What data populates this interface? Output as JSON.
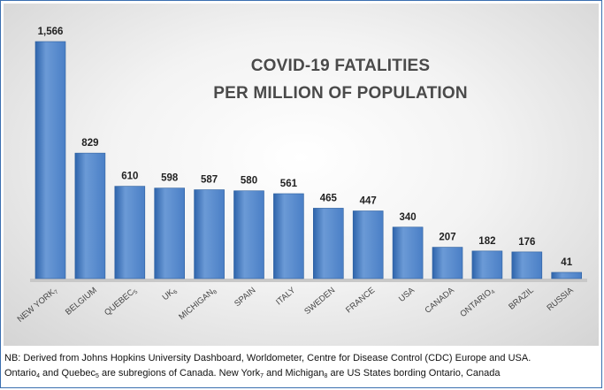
{
  "chart_data": {
    "type": "bar",
    "title": "COVID-19 FATALITIES PER MILLION OF POPULATION",
    "title_lines": [
      "COVID-19 FATALITIES",
      "PER MILLION OF POPULATION"
    ],
    "categories": [
      "NEW YORK7",
      "BELGIUM",
      "QUEBEC5",
      "UK6",
      "MICHIGAN8",
      "SPAIN",
      "ITALY",
      "SWEDEN",
      "FRANCE",
      "USA",
      "CANADA",
      "ONTARIO4",
      "BRAZIL",
      "RUSSIA"
    ],
    "category_labels": [
      {
        "base": "NEW YORK",
        "sub": "7"
      },
      {
        "base": "BELGIUM",
        "sub": ""
      },
      {
        "base": "QUEBEC",
        "sub": "5"
      },
      {
        "base": "UK",
        "sub": "6"
      },
      {
        "base": "MICHIGAN",
        "sub": "8"
      },
      {
        "base": "SPAIN",
        "sub": ""
      },
      {
        "base": "ITALY",
        "sub": ""
      },
      {
        "base": "SWEDEN",
        "sub": ""
      },
      {
        "base": "FRANCE",
        "sub": ""
      },
      {
        "base": "USA",
        "sub": ""
      },
      {
        "base": "CANADA",
        "sub": ""
      },
      {
        "base": "ONTARIO",
        "sub": "4"
      },
      {
        "base": "BRAZIL",
        "sub": ""
      },
      {
        "base": "RUSSIA",
        "sub": ""
      }
    ],
    "values": [
      1566,
      829,
      610,
      598,
      587,
      580,
      561,
      465,
      447,
      340,
      207,
      182,
      176,
      41
    ],
    "data_labels": [
      "1,566",
      "829",
      "610",
      "598",
      "587",
      "580",
      "561",
      "465",
      "447",
      "340",
      "207",
      "182",
      "176",
      "41"
    ],
    "xlabel": "",
    "ylabel": "",
    "ylim": [
      0,
      1566
    ],
    "grid": false,
    "legend": "none",
    "colors": {
      "bar": "#4a7fc6",
      "bar_light": "#6b9ad6",
      "bar_dark": "#2e64ab",
      "border": "#3a6fb0"
    }
  },
  "note": {
    "line1": "NB: Derived from Johns Hopkins University Dashboard, Worldometer, Centre for Disease Control (CDC) Europe and USA.",
    "line2_segments": [
      {
        "text": "Ontario",
        "sub": "4"
      },
      {
        "text": " and Quebec",
        "sub": "5"
      },
      {
        "text": " are subregions of Canada. New York",
        "sub": "7"
      },
      {
        "text": " and Michigan",
        "sub": "8"
      },
      {
        "text": " are US States bording Ontario, Canada",
        "sub": ""
      }
    ]
  }
}
